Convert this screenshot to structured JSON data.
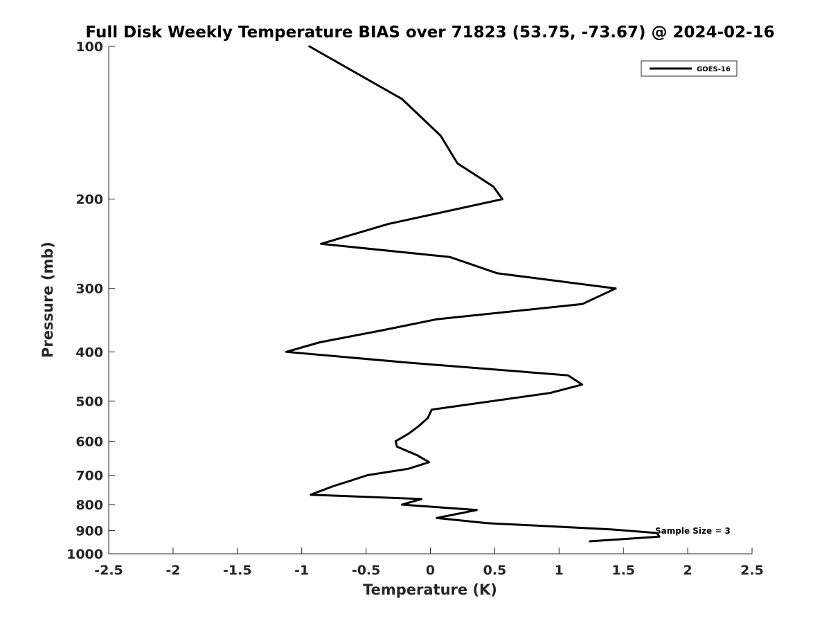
{
  "chart_data": {
    "type": "line",
    "title": "Full Disk Weekly Temperature BIAS over 71823 (53.75, -73.67) @ 2024-02-16",
    "xlabel": "Temperature (K)",
    "ylabel": "Pressure (mb)",
    "xlim": [
      -2.5,
      2.5
    ],
    "ylim": [
      100,
      1000
    ],
    "y_scale": "log",
    "y_reversed": true,
    "x_ticks": [
      -2.5,
      -2,
      -1.5,
      -1,
      -0.5,
      0,
      0.5,
      1,
      1.5,
      2,
      2.5
    ],
    "x_tick_labels": [
      "-2.5",
      "-2",
      "-1.5",
      "-1",
      "-0.5",
      "0",
      "0.5",
      "1",
      "1.5",
      "2",
      "2.5"
    ],
    "y_ticks": [
      100,
      200,
      300,
      400,
      500,
      600,
      700,
      800,
      900,
      1000
    ],
    "y_tick_labels": [
      "100",
      "200",
      "300",
      "400",
      "500",
      "600",
      "700",
      "800",
      "900",
      "1000"
    ],
    "grid": false,
    "legend_position": "top-right",
    "annotation": "Sample Size = 3",
    "series": [
      {
        "name": "GOES-16",
        "color": "#000000",
        "points": [
          {
            "x": -0.94,
            "y": 100
          },
          {
            "x": -0.22,
            "y": 127
          },
          {
            "x": 0.08,
            "y": 150
          },
          {
            "x": 0.21,
            "y": 170
          },
          {
            "x": 0.49,
            "y": 189
          },
          {
            "x": 0.56,
            "y": 200
          },
          {
            "x": -0.33,
            "y": 224
          },
          {
            "x": -0.85,
            "y": 245
          },
          {
            "x": 0.15,
            "y": 260
          },
          {
            "x": 0.52,
            "y": 280
          },
          {
            "x": 1.44,
            "y": 300
          },
          {
            "x": 1.18,
            "y": 322
          },
          {
            "x": 0.05,
            "y": 345
          },
          {
            "x": -0.38,
            "y": 363
          },
          {
            "x": -0.86,
            "y": 383
          },
          {
            "x": -1.12,
            "y": 400
          },
          {
            "x": -0.18,
            "y": 420
          },
          {
            "x": 1.07,
            "y": 445
          },
          {
            "x": 1.18,
            "y": 464
          },
          {
            "x": 0.93,
            "y": 482
          },
          {
            "x": 0.01,
            "y": 520
          },
          {
            "x": -0.02,
            "y": 540
          },
          {
            "x": -0.09,
            "y": 560
          },
          {
            "x": -0.17,
            "y": 580
          },
          {
            "x": -0.27,
            "y": 600
          },
          {
            "x": -0.26,
            "y": 615
          },
          {
            "x": -0.1,
            "y": 640
          },
          {
            "x": -0.01,
            "y": 660
          },
          {
            "x": -0.17,
            "y": 680
          },
          {
            "x": -0.49,
            "y": 700
          },
          {
            "x": -0.6,
            "y": 715
          },
          {
            "x": -0.75,
            "y": 735
          },
          {
            "x": -0.93,
            "y": 765
          },
          {
            "x": -0.07,
            "y": 780
          },
          {
            "x": -0.22,
            "y": 800
          },
          {
            "x": 0.36,
            "y": 820
          },
          {
            "x": 0.05,
            "y": 850
          },
          {
            "x": 0.44,
            "y": 870
          },
          {
            "x": 1.4,
            "y": 895
          },
          {
            "x": 1.76,
            "y": 910
          },
          {
            "x": 1.78,
            "y": 925
          },
          {
            "x": 1.24,
            "y": 945
          }
        ]
      }
    ]
  }
}
